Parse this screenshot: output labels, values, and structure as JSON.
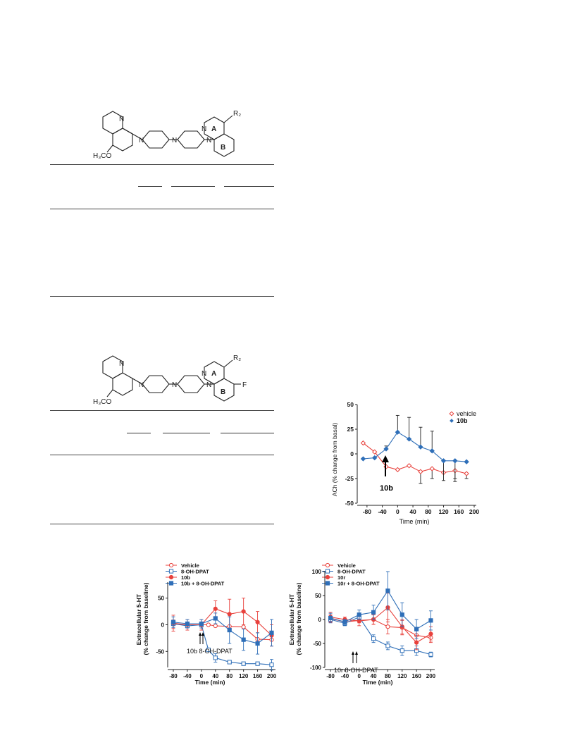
{
  "structure1": {
    "labels": {
      "n1": "N",
      "n2": "N",
      "n3": "N",
      "n4": "N",
      "n5": "N",
      "ring_a": "A",
      "ring_b": "B",
      "methoxy": "H₃CO",
      "r2": "R₂"
    }
  },
  "structure2": {
    "labels": {
      "n1": "N",
      "n2": "N",
      "n3": "N",
      "n4": "N",
      "n5": "N",
      "ring_a": "A",
      "ring_b": "B",
      "methoxy": "H₃CO",
      "r2": "R₂",
      "fluoro": "F"
    }
  },
  "colors": {
    "red": "#e8413c",
    "blue": "#2f6fb8",
    "axis": "#222222"
  },
  "chart_data": [
    {
      "type": "line",
      "title": "",
      "ylabel": "ACh (% change from basal)",
      "xlabel": "Time (min)",
      "x": [
        -80,
        -60,
        -40,
        -20,
        0,
        20,
        40,
        60,
        80,
        100,
        120,
        140,
        160,
        180,
        200
      ],
      "x_ticks": [
        "-80",
        "-40",
        "0",
        "40",
        "80",
        "120",
        "160",
        "200"
      ],
      "y_ticks": [
        "50",
        "25",
        "0",
        "-25",
        "-50"
      ],
      "ylim": [
        -50,
        50
      ],
      "legend_position": "top-right",
      "annotation": "10b",
      "series": [
        {
          "name": "vehicle",
          "color": "red",
          "marker": "open-diamond",
          "x": [
            -90,
            -60,
            -30,
            0,
            30,
            60,
            90,
            120,
            150,
            180
          ],
          "values": [
            11,
            2,
            -13,
            -16,
            -12,
            -18,
            -15,
            -19,
            -17,
            -20
          ],
          "err": [
            0,
            0,
            0,
            0,
            0,
            12,
            10,
            0,
            8,
            5
          ]
        },
        {
          "name": "10b",
          "color": "blue",
          "marker": "filled-diamond",
          "x": [
            -90,
            -60,
            -30,
            0,
            30,
            60,
            90,
            120,
            150,
            180
          ],
          "values": [
            -5,
            -4,
            5,
            22,
            15,
            7,
            3,
            -7,
            -7,
            -8
          ],
          "err": [
            0,
            0,
            3,
            17,
            22,
            20,
            20,
            20,
            21,
            0
          ]
        }
      ]
    },
    {
      "type": "line",
      "title": "",
      "ylabel": "Extracellular 5-HT (% change from baseline)",
      "xlabel": "Time (min)",
      "x_ticks": [
        "-80",
        "-40",
        "0",
        "40",
        "80",
        "120",
        "160",
        "200"
      ],
      "y_ticks": [
        "50",
        "0",
        "-50"
      ],
      "ylim": [
        -80,
        80
      ],
      "annotation": "10b  8-OH-DPAT",
      "series": [
        {
          "name": "Vehicle",
          "color": "red",
          "marker": "open-circle",
          "x": [
            -80,
            -40,
            0,
            20,
            40,
            80,
            120,
            160,
            200
          ],
          "values": [
            1,
            0,
            0,
            0,
            -2,
            -3,
            -4,
            -27,
            -28
          ],
          "err": [
            8,
            0,
            0,
            0,
            0,
            0,
            0,
            0,
            0
          ]
        },
        {
          "name": "8-OH-DPAT",
          "color": "blue",
          "marker": "open-square",
          "x": [
            -80,
            -40,
            0,
            20,
            40,
            80,
            120,
            160,
            200
          ],
          "values": [
            2,
            -2,
            0,
            -47,
            -62,
            -70,
            -73,
            -73,
            -75
          ],
          "err": [
            0,
            0,
            0,
            0,
            8,
            0,
            0,
            0,
            10
          ]
        },
        {
          "name": "10b",
          "color": "red",
          "marker": "filled-circle",
          "x": [
            -80,
            -40,
            0,
            40,
            80,
            120,
            160,
            200
          ],
          "values": [
            3,
            0,
            0,
            30,
            20,
            25,
            5,
            -20
          ],
          "err": [
            15,
            10,
            10,
            15,
            28,
            25,
            20,
            20
          ]
        },
        {
          "name": "10b + 8-OH-DPAT",
          "color": "blue",
          "marker": "filled-square",
          "x": [
            -80,
            -40,
            0,
            40,
            80,
            120,
            160,
            200
          ],
          "values": [
            5,
            2,
            2,
            12,
            -10,
            -28,
            -35,
            -15
          ],
          "err": [
            10,
            8,
            8,
            10,
            25,
            20,
            20,
            25
          ]
        }
      ]
    },
    {
      "type": "line",
      "title": "",
      "ylabel": "Extracellular 5-HT (% change from baseline)",
      "xlabel": "Time (min)",
      "x_ticks": [
        "-80",
        "-40",
        "0",
        "40",
        "80",
        "120",
        "160",
        "200"
      ],
      "y_ticks": [
        "100",
        "50",
        "0",
        "-50",
        "-100"
      ],
      "ylim": [
        -100,
        100
      ],
      "annotation": "10r  8-OH-DPAT",
      "series": [
        {
          "name": "Vehicle",
          "color": "red",
          "marker": "open-circle",
          "x": [
            -80,
            -40,
            0,
            40,
            80,
            120,
            160,
            200
          ],
          "values": [
            2,
            -5,
            -2,
            0,
            -15,
            -17,
            -33,
            -38
          ],
          "err": [
            8,
            5,
            5,
            10,
            15,
            15,
            15,
            10
          ]
        },
        {
          "name": "8-OH-DPAT",
          "color": "blue",
          "marker": "open-square",
          "x": [
            -80,
            -40,
            0,
            40,
            80,
            120,
            160,
            200
          ],
          "values": [
            0,
            -8,
            5,
            -40,
            -55,
            -65,
            -65,
            -73
          ],
          "err": [
            0,
            5,
            5,
            8,
            8,
            10,
            10,
            5
          ]
        },
        {
          "name": "10r",
          "color": "red",
          "marker": "filled-circle",
          "x": [
            -80,
            -40,
            0,
            40,
            80,
            120,
            160,
            200
          ],
          "values": [
            5,
            0,
            -3,
            0,
            25,
            -15,
            -48,
            -30
          ],
          "err": [
            10,
            5,
            10,
            10,
            30,
            15,
            15,
            15
          ]
        },
        {
          "name": "10r + 8-OH-DPAT",
          "color": "blue",
          "marker": "filled-square",
          "x": [
            -80,
            -40,
            0,
            40,
            80,
            120,
            160,
            200
          ],
          "values": [
            3,
            -5,
            10,
            15,
            60,
            10,
            -20,
            -2
          ],
          "err": [
            10,
            5,
            10,
            15,
            40,
            25,
            20,
            20
          ]
        }
      ]
    }
  ]
}
